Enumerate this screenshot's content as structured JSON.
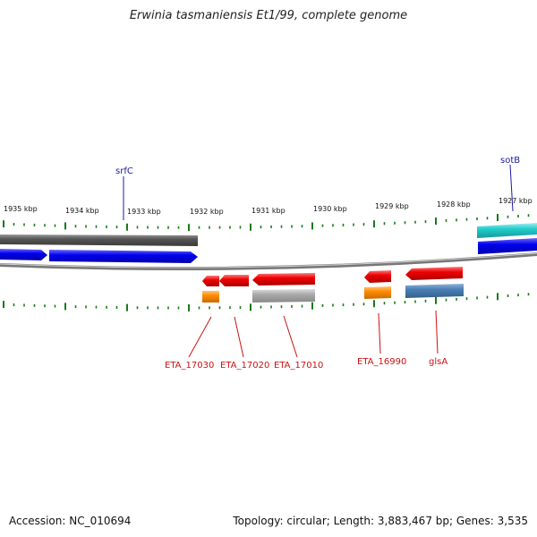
{
  "title": "Erwinia tasmaniensis Et1/99, complete genome",
  "accession": "Accession: NC_010694",
  "summary": "Topology: circular; Length: 3,883,467 bp; Genes: 3,535",
  "scale_labels": [
    "1935 kbp",
    "1934 kbp",
    "1933 kbp",
    "1932 kbp",
    "1931 kbp",
    "1930 kbp",
    "1929 kbp",
    "1928 kbp",
    "1927 kbp"
  ],
  "top_labels": [
    {
      "text": "srfC",
      "color": "#1a1aa6"
    },
    {
      "text": "sotB",
      "color": "#1a1aa6"
    }
  ],
  "bottom_labels": [
    {
      "text": "ETA_17030",
      "color": "#cc1111"
    },
    {
      "text": "ETA_17020",
      "color": "#cc1111"
    },
    {
      "text": "ETA_17010",
      "color": "#cc1111"
    },
    {
      "text": "ETA_16990",
      "color": "#cc1111"
    },
    {
      "text": "glsA",
      "color": "#cc1111"
    }
  ],
  "colors": {
    "forward_gene": "#0000ee",
    "reverse_gene": "#ee0000",
    "forward_feature": "#555555",
    "reverse_feature": "#aaaaaa",
    "orange": "#ff8c00",
    "steelblue": "#4a7fb5",
    "cyan": "#22cccc",
    "tick": "#1a7a1a",
    "backbone": "#888888"
  }
}
